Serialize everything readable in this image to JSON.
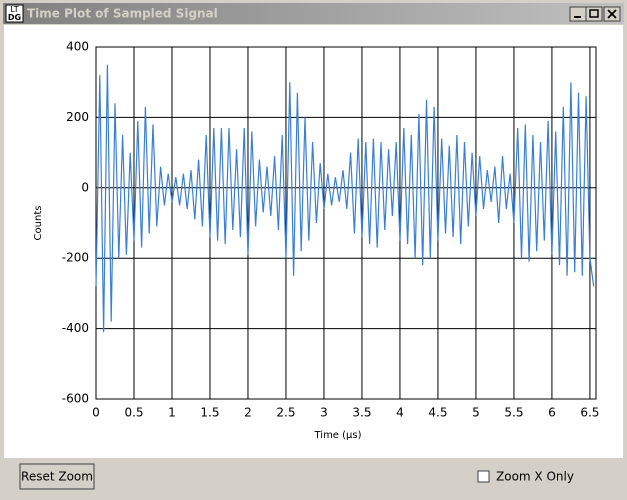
{
  "window": {
    "title": "Time Plot of Sampled Signal",
    "icon": [
      "LT",
      "DG"
    ],
    "buttons": {
      "reset": "Reset Zoom",
      "zoom_x": "Zoom X Only"
    }
  },
  "chart_data": {
    "type": "line",
    "xlabel": "Time (µs)",
    "ylabel": "Counts",
    "x": [
      0,
      0.05,
      0.1,
      0.15,
      0.2,
      0.25,
      0.3,
      0.35,
      0.4,
      0.45,
      0.5,
      0.55,
      0.6,
      0.65,
      0.7,
      0.75,
      0.8,
      0.85,
      0.9,
      0.95,
      1,
      1.05,
      1.1,
      1.15,
      1.2,
      1.25,
      1.3,
      1.35,
      1.4,
      1.45,
      1.5,
      1.55,
      1.6,
      1.65,
      1.7,
      1.75,
      1.8,
      1.85,
      1.9,
      1.95,
      2,
      2.05,
      2.1,
      2.15,
      2.2,
      2.25,
      2.3,
      2.35,
      2.4,
      2.45,
      2.5,
      2.55,
      2.6,
      2.65,
      2.7,
      2.75,
      2.8,
      2.85,
      2.9,
      2.95,
      3,
      3.05,
      3.1,
      3.15,
      3.2,
      3.25,
      3.3,
      3.35,
      3.4,
      3.45,
      3.5,
      3.55,
      3.6,
      3.65,
      3.7,
      3.75,
      3.8,
      3.85,
      3.9,
      3.95,
      4,
      4.05,
      4.1,
      4.15,
      4.2,
      4.25,
      4.3,
      4.35,
      4.4,
      4.45,
      4.5,
      4.55,
      4.6,
      4.65,
      4.7,
      4.75,
      4.8,
      4.85,
      4.9,
      4.95,
      5,
      5.05,
      5.1,
      5.15,
      5.2,
      5.25,
      5.3,
      5.35,
      5.4,
      5.45,
      5.5,
      5.55,
      5.6,
      5.65,
      5.7,
      5.75,
      5.8,
      5.85,
      5.9,
      5.95,
      6,
      6.05,
      6.1,
      6.15,
      6.2,
      6.25,
      6.3,
      6.35,
      6.4,
      6.45,
      6.5,
      6.55
    ],
    "series": [
      {
        "color": "#3a7fd5",
        "values": [
          -280,
          320,
          -410,
          350,
          -380,
          240,
          -200,
          150,
          -190,
          100,
          -150,
          190,
          -170,
          230,
          -130,
          180,
          -110,
          60,
          -50,
          40,
          -40,
          30,
          -50,
          40,
          -60,
          50,
          -90,
          80,
          -110,
          150,
          -140,
          170,
          -150,
          170,
          -160,
          170,
          -120,
          110,
          -140,
          170,
          -190,
          160,
          -110,
          80,
          -70,
          60,
          -80,
          90,
          -120,
          150,
          -200,
          300,
          -250,
          270,
          -180,
          200,
          -150,
          130,
          -100,
          70,
          -60,
          40,
          -50,
          30,
          -40,
          50,
          -60,
          100,
          -130,
          140,
          -140,
          130,
          -160,
          140,
          -170,
          130,
          -120,
          110,
          -80,
          130,
          -150,
          170,
          -160,
          150,
          -200,
          210,
          -220,
          250,
          -200,
          230,
          -150,
          140,
          -130,
          120,
          -140,
          150,
          -160,
          130,
          -110,
          100,
          -80,
          90,
          -60,
          50,
          -40,
          60,
          -100,
          90,
          -60,
          40,
          -100,
          170,
          -200,
          180,
          -210,
          150,
          -180,
          130,
          -150,
          190,
          -190,
          160,
          -220,
          230,
          -250,
          300,
          -240,
          270,
          -250,
          260,
          -200,
          -280
        ]
      }
    ],
    "xlim": [
      0,
      6.58
    ],
    "ylim": [
      -600,
      400
    ],
    "xticks": [
      0,
      0.5,
      1,
      1.5,
      2,
      2.5,
      3,
      3.5,
      4,
      4.5,
      5,
      5.5,
      6,
      6.5
    ],
    "yticks": [
      -600,
      -400,
      -200,
      0,
      200,
      400
    ],
    "grid": true
  }
}
